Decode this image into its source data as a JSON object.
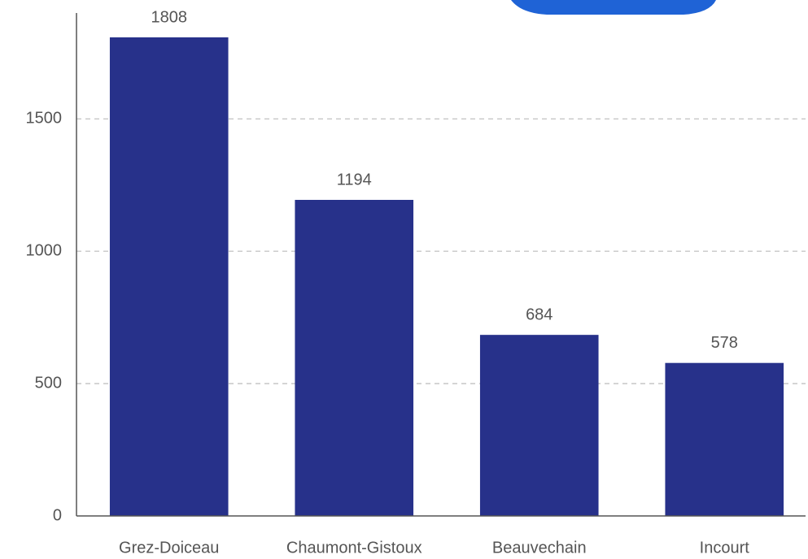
{
  "chart_data": {
    "type": "bar",
    "categories": [
      "Grez-Doiceau",
      "Chaumont-Gistoux",
      "Beauvechain",
      "Incourt"
    ],
    "values": [
      1808,
      1194,
      684,
      578
    ],
    "color": "#27318a",
    "ylim": [
      0,
      1900
    ],
    "yticks": [
      0,
      500,
      1000,
      1500
    ],
    "grid": true
  }
}
